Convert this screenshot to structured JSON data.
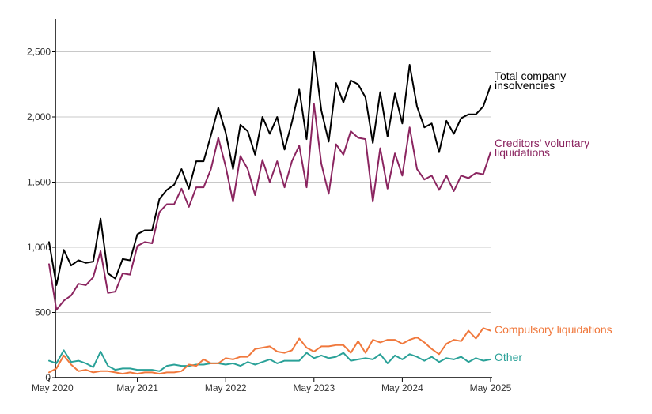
{
  "chart_data": {
    "type": "line",
    "title": "",
    "xlabel": "",
    "ylabel": "",
    "ylim": [
      0,
      2700
    ],
    "grid": true,
    "y_ticks": [
      0,
      500,
      1000,
      1500,
      2000,
      2500
    ],
    "y_tick_labels": [
      "0",
      "500",
      "1,000",
      "1,500",
      "2,000",
      "2,500"
    ],
    "x_ticks": [
      0,
      12,
      24,
      36,
      48,
      60
    ],
    "x_tick_labels": [
      "May 2020",
      "May 2021",
      "May 2022",
      "May 2023",
      "May 2024",
      "May 2025"
    ],
    "x_unit": "months since May 2020",
    "series": [
      {
        "name": "Total company insolvencies",
        "label_lines": [
          "Total company",
          "insolvencies"
        ],
        "color": "#000000",
        "values": [
          1040,
          710,
          980,
          860,
          900,
          880,
          890,
          1220,
          800,
          760,
          910,
          900,
          1100,
          1130,
          1130,
          1370,
          1440,
          1480,
          1600,
          1450,
          1660,
          1660,
          1860,
          2070,
          1880,
          1600,
          1940,
          1890,
          1710,
          2000,
          1870,
          2000,
          1750,
          1960,
          2210,
          1830,
          2500,
          2050,
          1810,
          2260,
          2110,
          2280,
          2250,
          2150,
          1800,
          2190,
          1850,
          2180,
          1950,
          2400,
          2080,
          1920,
          1950,
          1730,
          1970,
          1870,
          1990,
          2020,
          2020,
          2080,
          2240
        ]
      },
      {
        "name": "Creditors' voluntary liquidations",
        "label_lines": [
          "Creditors' voluntary",
          "liquidations"
        ],
        "color": "#8b2560",
        "values": [
          870,
          520,
          590,
          630,
          720,
          710,
          770,
          970,
          650,
          660,
          800,
          790,
          1010,
          1040,
          1030,
          1270,
          1330,
          1330,
          1450,
          1310,
          1460,
          1460,
          1600,
          1840,
          1620,
          1350,
          1700,
          1600,
          1400,
          1670,
          1500,
          1660,
          1460,
          1660,
          1780,
          1460,
          2100,
          1640,
          1410,
          1790,
          1710,
          1890,
          1840,
          1830,
          1350,
          1760,
          1450,
          1720,
          1550,
          1920,
          1600,
          1520,
          1550,
          1440,
          1550,
          1430,
          1550,
          1530,
          1570,
          1560,
          1730
        ]
      },
      {
        "name": "Compulsory liquidations",
        "label_lines": [
          "Compulsory liquidations"
        ],
        "color": "#f0783c",
        "values": [
          40,
          70,
          170,
          100,
          50,
          60,
          40,
          50,
          50,
          40,
          30,
          40,
          30,
          40,
          40,
          30,
          40,
          40,
          50,
          100,
          90,
          140,
          110,
          110,
          150,
          140,
          160,
          160,
          220,
          230,
          240,
          200,
          190,
          210,
          300,
          230,
          200,
          240,
          240,
          250,
          250,
          190,
          280,
          190,
          290,
          270,
          290,
          290,
          260,
          290,
          310,
          270,
          220,
          180,
          260,
          290,
          280,
          360,
          300,
          380,
          360
        ]
      },
      {
        "name": "Other",
        "label_lines": [
          "Other"
        ],
        "color": "#2aa198",
        "values": [
          130,
          110,
          210,
          120,
          130,
          110,
          80,
          200,
          90,
          60,
          70,
          70,
          60,
          60,
          60,
          50,
          90,
          100,
          90,
          90,
          100,
          100,
          110,
          110,
          100,
          110,
          90,
          120,
          100,
          120,
          140,
          110,
          130,
          130,
          130,
          190,
          150,
          170,
          150,
          160,
          190,
          130,
          140,
          150,
          140,
          180,
          110,
          170,
          140,
          180,
          160,
          130,
          160,
          120,
          150,
          140,
          160,
          120,
          150,
          130,
          140
        ]
      }
    ]
  }
}
